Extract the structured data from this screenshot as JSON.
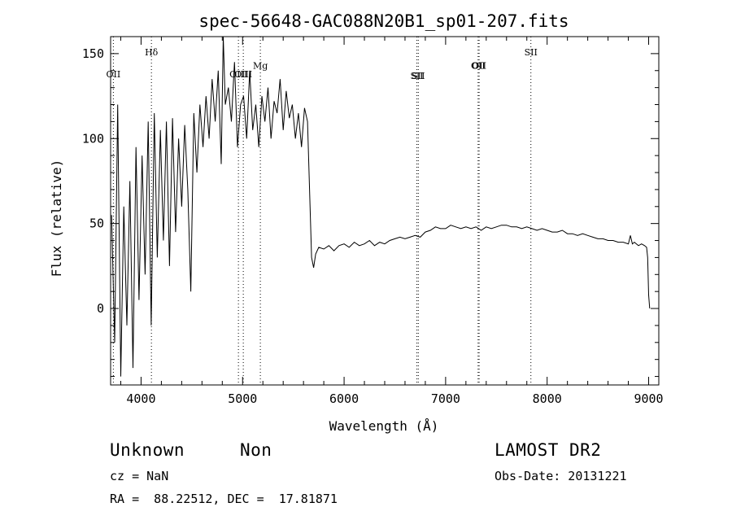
{
  "chart_data": {
    "type": "line",
    "title": "spec-56648-GAC088N20B1_sp01-207.fits",
    "xlabel": "Wavelength (Å)",
    "ylabel": "Flux (relative)",
    "xlim": [
      3700,
      9100
    ],
    "ylim": [
      -45,
      160
    ],
    "x_ticks": [
      4000,
      5000,
      6000,
      7000,
      8000,
      9000
    ],
    "x_tick_labels": [
      "4000",
      "5000",
      "6000",
      "7000",
      "8000",
      "9000"
    ],
    "y_ticks": [
      0,
      50,
      100,
      150
    ],
    "y_tick_labels": [
      "0",
      "50",
      "100",
      "150"
    ],
    "grid": false,
    "legend": "none",
    "line_color": "#000000",
    "series": [
      {
        "x": [
          3710,
          3740,
          3770,
          3800,
          3830,
          3860,
          3890,
          3920,
          3950,
          3980,
          4010,
          4040,
          4070,
          4100,
          4130,
          4160,
          4190,
          4220,
          4250,
          4280,
          4310,
          4340,
          4370,
          4400,
          4430,
          4460,
          4490,
          4520,
          4550,
          4580,
          4610,
          4640,
          4670,
          4700,
          4730,
          4760,
          4790,
          4810,
          4830,
          4860,
          4890,
          4920,
          4950,
          4980,
          5010,
          5040,
          5070,
          5100,
          5130,
          5160,
          5190,
          5220,
          5250,
          5280,
          5310,
          5340,
          5370,
          5400,
          5430,
          5460,
          5490,
          5520,
          5550,
          5580,
          5610,
          5640,
          5660,
          5680,
          5700,
          5720,
          5750,
          5800,
          5850,
          5900,
          5950,
          6000,
          6050,
          6100,
          6150,
          6200,
          6250,
          6300,
          6350,
          6400,
          6450,
          6500,
          6550,
          6600,
          6650,
          6700,
          6750,
          6800,
          6850,
          6900,
          6950,
          7000,
          7050,
          7100,
          7150,
          7200,
          7250,
          7300,
          7350,
          7400,
          7450,
          7500,
          7550,
          7600,
          7650,
          7700,
          7750,
          7800,
          7850,
          7900,
          7950,
          8000,
          8050,
          8100,
          8150,
          8200,
          8250,
          8300,
          8350,
          8400,
          8450,
          8500,
          8550,
          8600,
          8650,
          8700,
          8750,
          8800,
          8820,
          8840,
          8860,
          8880,
          8900,
          8930,
          8960,
          8980,
          8990,
          9000,
          9010
        ],
        "y": [
          55,
          -20,
          120,
          -40,
          60,
          -10,
          75,
          -35,
          95,
          5,
          90,
          20,
          110,
          -10,
          115,
          30,
          105,
          40,
          110,
          25,
          112,
          45,
          100,
          60,
          108,
          70,
          10,
          115,
          80,
          120,
          95,
          125,
          100,
          135,
          110,
          140,
          85,
          160,
          120,
          130,
          110,
          145,
          95,
          120,
          125,
          100,
          140,
          105,
          120,
          95,
          125,
          110,
          130,
          100,
          122,
          115,
          135,
          105,
          128,
          112,
          120,
          100,
          115,
          95,
          118,
          110,
          70,
          30,
          24,
          32,
          36,
          35,
          37,
          34,
          37,
          38,
          36,
          39,
          37,
          38,
          40,
          37,
          39,
          38,
          40,
          41,
          42,
          41,
          42,
          43,
          42,
          45,
          46,
          48,
          47,
          47,
          49,
          48,
          47,
          48,
          47,
          48,
          46,
          48,
          47,
          48,
          49,
          49,
          48,
          48,
          47,
          48,
          47,
          46,
          47,
          46,
          45,
          45,
          46,
          44,
          44,
          43,
          44,
          43,
          42,
          41,
          41,
          40,
          40,
          39,
          39,
          38,
          43,
          38,
          39,
          38,
          37,
          38,
          37,
          36,
          30,
          8,
          0
        ]
      }
    ],
    "lines": [
      {
        "label": "OII",
        "x": 3727,
        "label_y": 136
      },
      {
        "label": "Hδ",
        "x": 4102,
        "label_y": 149
      },
      {
        "label": "OIII",
        "x": 4959,
        "label_y": 136
      },
      {
        "label": "OIII",
        "x": 5007,
        "label_y": 136
      },
      {
        "label": "Mg",
        "x": 5175,
        "label_y": 141
      },
      {
        "label": "SII",
        "x": 6717,
        "label_y": 135
      },
      {
        "label": "SII",
        "x": 6731,
        "label_y": 135
      },
      {
        "label": "OII",
        "x": 7320,
        "label_y": 141
      },
      {
        "label": "OII",
        "x": 7330,
        "label_y": 141
      },
      {
        "label": "SII",
        "x": 7840,
        "label_y": 149
      }
    ]
  },
  "info": {
    "class": "Unknown",
    "subclass": "Non",
    "survey": "LAMOST DR2",
    "cz": "cz = NaN",
    "obs_date": "Obs-Date: 20131221",
    "coords": "RA =  88.22512, DEC =  17.81871"
  }
}
